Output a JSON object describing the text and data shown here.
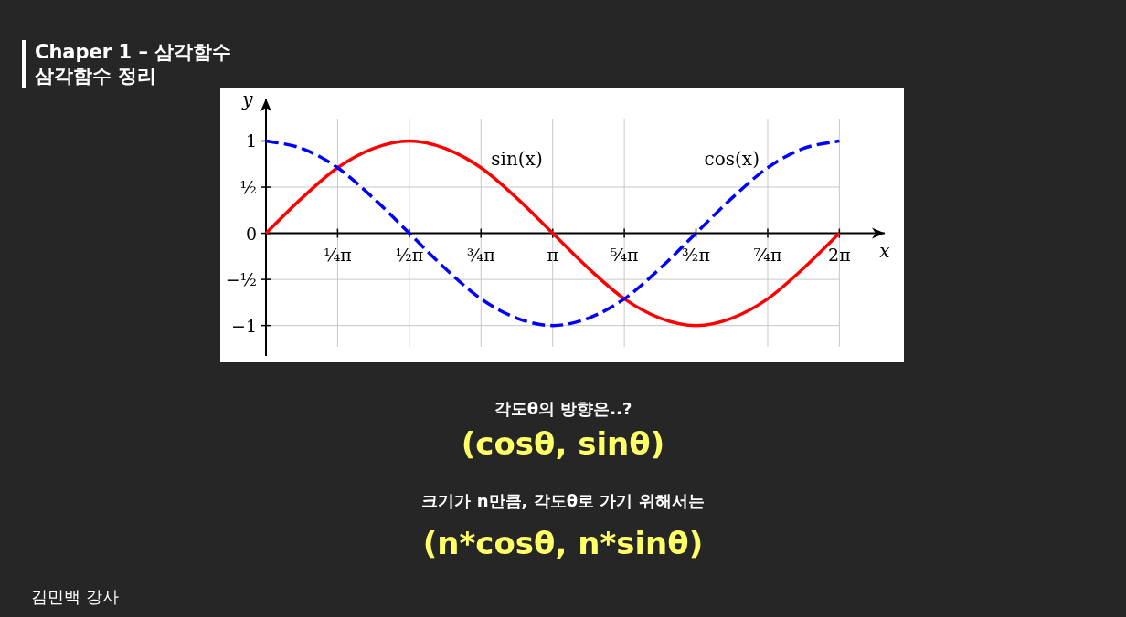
{
  "chart_data": {
    "type": "line",
    "title": "Chaper 1 – 삼각함수",
    "subtitle": "삼각함수 정리",
    "xlabel": "x",
    "ylabel": "y",
    "annotations": [
      "각도θ의 방향은..?",
      "(cosθ, sinθ)",
      "크기가 n만큼, 각도θ로 가기 위해서는",
      "(n*cosθ, n*sinθ)",
      "김민백 강사"
    ],
    "x": [
      0,
      0.393,
      0.785,
      1.178,
      1.571,
      1.963,
      2.356,
      2.749,
      3.142,
      3.534,
      3.927,
      4.32,
      4.712,
      5.105,
      5.498,
      5.89,
      6.283
    ],
    "series": [
      {
        "name": "sin(x)",
        "color": "#ff0000",
        "line_style": "solid",
        "values": [
          0,
          0.38,
          0.71,
          0.92,
          1,
          0.92,
          0.71,
          0.38,
          0,
          -0.38,
          -0.71,
          -0.92,
          -1,
          -0.92,
          -0.71,
          -0.38,
          0
        ]
      },
      {
        "name": "cos(x)",
        "color": "#0000ff",
        "line_style": "dashed",
        "values": [
          1,
          0.92,
          0.71,
          0.38,
          0,
          -0.38,
          -0.71,
          -0.92,
          -1,
          -0.92,
          -0.71,
          -0.38,
          0,
          0.38,
          0.71,
          0.92,
          1
        ]
      }
    ],
    "xlim": [
      0,
      6.78
    ],
    "ylim": [
      -1.33,
      1.46
    ],
    "xticks": [
      {
        "value": 0.785,
        "label": "¼π"
      },
      {
        "value": 1.571,
        "label": "½π"
      },
      {
        "value": 2.356,
        "label": "¾π"
      },
      {
        "value": 3.142,
        "label": "π"
      },
      {
        "value": 3.927,
        "label": "⁵⁄₄π"
      },
      {
        "value": 4.712,
        "label": "³⁄₂π"
      },
      {
        "value": 5.498,
        "label": "⁷⁄₄π"
      },
      {
        "value": 6.283,
        "label": "2π"
      }
    ],
    "yticks": [
      1,
      {
        "value": 0.5,
        "label": "½"
      },
      0,
      {
        "value": -0.5,
        "label": "−½"
      },
      -1
    ],
    "grid": true
  }
}
